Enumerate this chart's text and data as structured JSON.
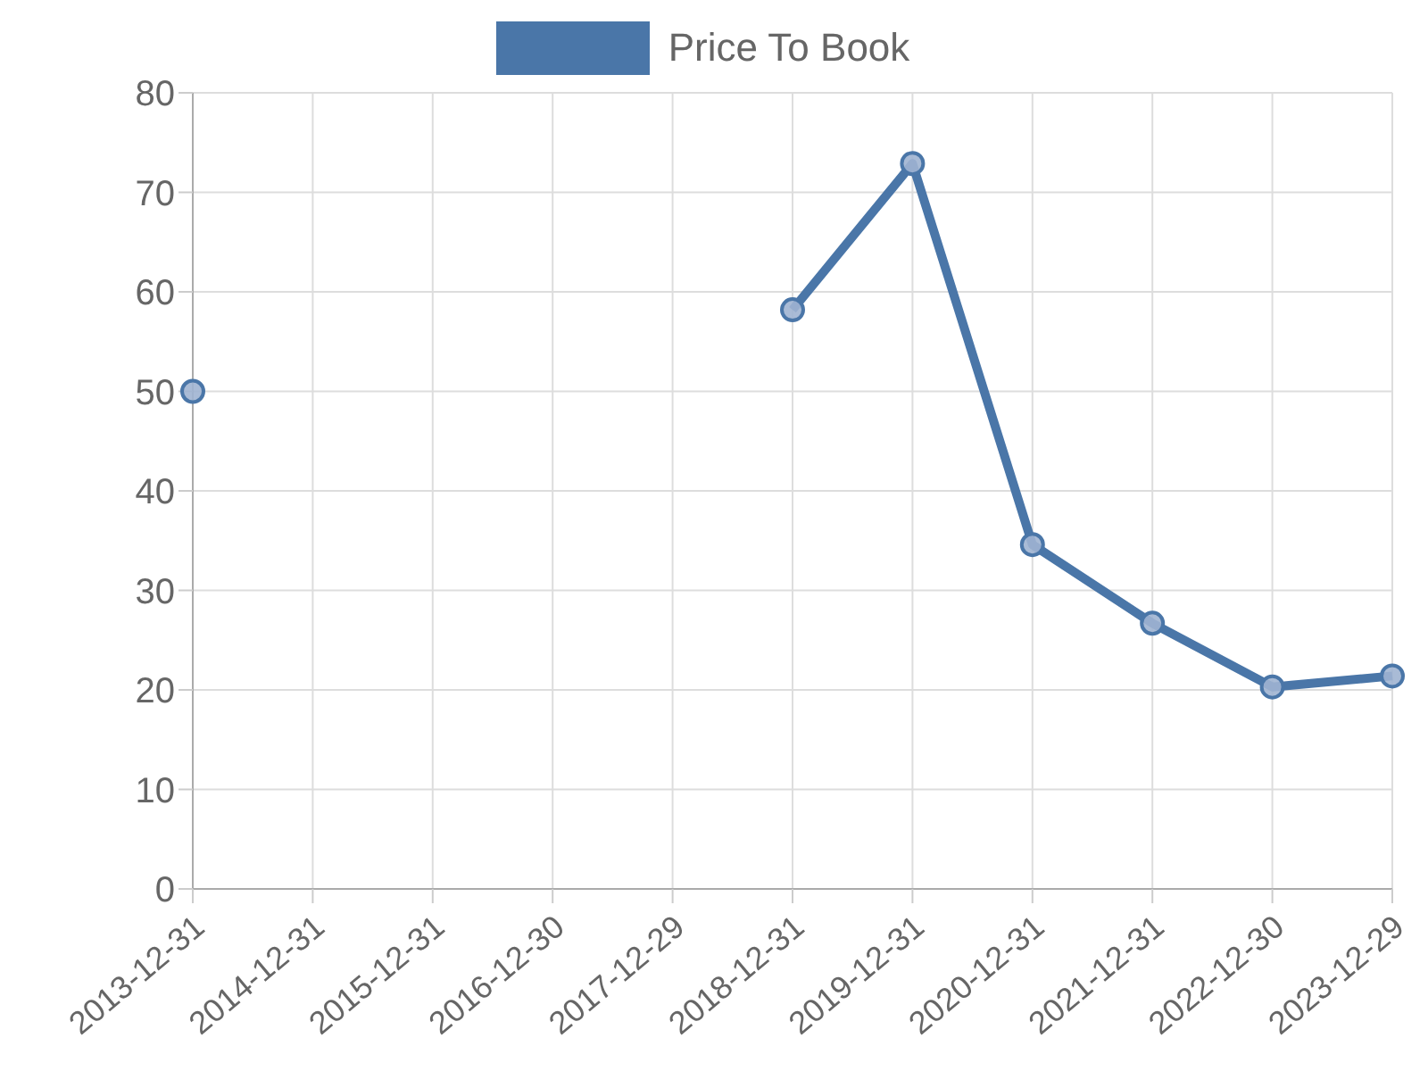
{
  "chart_data": {
    "type": "line",
    "categories": [
      "2013-12-31",
      "2014-12-31",
      "2015-12-31",
      "2016-12-30",
      "2017-12-29",
      "2018-12-31",
      "2019-12-31",
      "2020-12-31",
      "2021-12-31",
      "2022-12-30",
      "2023-12-29"
    ],
    "series": [
      {
        "name": "Price To Book",
        "color": "#4a76a8",
        "values": [
          50,
          null,
          null,
          null,
          null,
          58.2,
          72.9,
          34.6,
          26.7,
          20.3,
          21.4
        ]
      }
    ],
    "ylim": [
      0,
      80
    ],
    "yticks": [
      0,
      10,
      20,
      30,
      40,
      50,
      60,
      70,
      80
    ],
    "grid": true,
    "legend": "top",
    "marker": "circle",
    "line_style": "solid"
  }
}
